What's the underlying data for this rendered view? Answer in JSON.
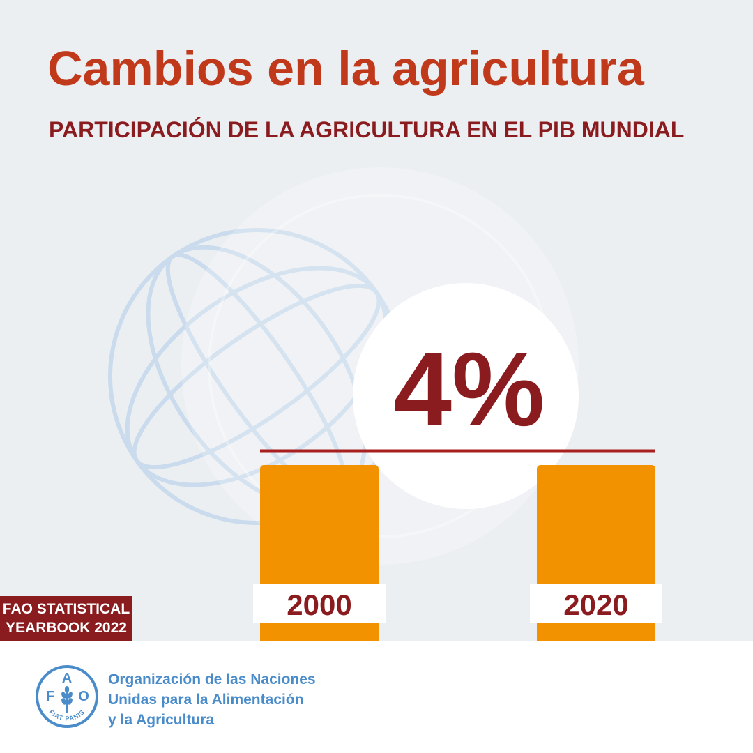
{
  "title": "Cambios en la agricultura",
  "subtitle": "PARTICIPACIÓN DE LA AGRICULTURA EN EL PIB MUNDIAL",
  "badge": {
    "line1": "FAO STATISTICAL",
    "line2": "YEARBOOK 2022"
  },
  "organization": {
    "line1": "Organización de las Naciones",
    "line2": "Unidas para la Alimentación",
    "line3": "y la Agricultura",
    "logo_letters": [
      "F",
      "A",
      "O"
    ],
    "logo_motto": "FIAT PANIS"
  },
  "colors": {
    "title": "#c0391b",
    "subtitle": "#8a1c1f",
    "bar": "#f39200",
    "value": "#8a1c1f",
    "reference_line": "#a7201f",
    "logo": "#4a8cc9"
  },
  "chart_data": {
    "type": "bar",
    "categories": [
      "2000",
      "2020"
    ],
    "values": [
      4,
      4
    ],
    "value_label": "4%",
    "annotation": "4%"
  }
}
